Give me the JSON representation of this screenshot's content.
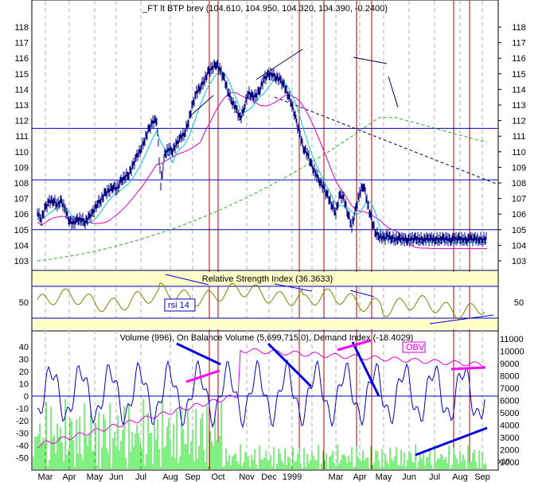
{
  "colors": {
    "price": "#000080",
    "ma_fast": "#00c8e0",
    "ma_slow": "#e000c0",
    "ma_long": "#20b020",
    "hline": "#0000c0",
    "vline": "#b00000",
    "rsi_band": "#ffffc8",
    "rsi_line": "#808000",
    "volume": "#00e000",
    "demand": "#0000d0",
    "obv": "#e000e0",
    "trend": "#0000e0",
    "trend_obv": "#ff00ff"
  },
  "chart_data": [
    {
      "type": "line",
      "title": "_FT lt BTP brev (104.610, 104.950, 104.320, 104.390, -0.2400)",
      "ylim": [
        102.3,
        118.8
      ],
      "yticks": [
        "103",
        "104",
        "105",
        "106",
        "107",
        "108",
        "109",
        "110",
        "111",
        "112",
        "113",
        "114",
        "115",
        "116",
        "117",
        "118"
      ],
      "hlines": [
        111.5,
        108.2,
        105.0
      ],
      "series": [
        {
          "key": "price",
          "x": [
            0,
            5,
            10,
            15,
            20,
            25,
            30,
            35,
            40,
            45,
            50,
            55,
            60,
            65,
            70,
            75,
            80,
            85,
            90,
            95,
            100,
            105,
            110,
            115,
            120,
            125,
            130,
            135,
            140,
            145,
            150,
            155,
            160,
            165,
            170,
            175,
            180,
            185,
            190,
            195,
            200,
            205,
            210,
            215,
            220,
            225,
            230,
            235,
            240,
            245,
            250,
            255,
            260,
            265,
            270,
            275,
            280,
            285,
            290,
            295,
            300,
            305,
            310,
            315,
            320,
            325,
            330,
            335,
            340,
            345,
            350,
            355,
            360,
            365,
            370,
            375,
            380,
            385,
            390,
            395,
            400,
            405,
            410,
            415,
            420,
            425,
            430,
            435,
            440,
            445,
            450,
            455,
            460,
            465,
            470,
            475,
            480,
            485,
            490,
            495,
            500,
            505,
            510,
            515,
            520,
            525,
            530,
            535,
            540,
            545,
            550,
            555,
            560,
            565
          ],
          "values": [
            106.1,
            105.7,
            106.4,
            106.8,
            106.9,
            106.6,
            106.8,
            106.3,
            105.6,
            105.4,
            105.6,
            105.7,
            105.5,
            105.8,
            106.1,
            106.7,
            106.9,
            107.3,
            107.5,
            107.8,
            107.6,
            108.1,
            108.4,
            108.6,
            109.1,
            109.7,
            110.2,
            110.8,
            111.4,
            111.9,
            112.1,
            107.9,
            109.8,
            110.2,
            110.1,
            110.5,
            110.9,
            111.2,
            112.0,
            113.0,
            113.8,
            114.2,
            114.6,
            115.1,
            115.4,
            115.7,
            115.2,
            114.6,
            113.8,
            113.2,
            112.7,
            112.1,
            112.9,
            113.8,
            113.5,
            113.6,
            114.1,
            114.7,
            114.9,
            115.0,
            114.8,
            114.6,
            114.2,
            113.7,
            113.0,
            112.0,
            111.0,
            110.2,
            109.8,
            109.0,
            108.6,
            108.1,
            107.6,
            107.1,
            106.6,
            106.1,
            107.2,
            107.0,
            106.1,
            105.2,
            106.3,
            107.4,
            107.9,
            106.6,
            105.6,
            104.8,
            104.6,
            104.4,
            104.6,
            104.5,
            104.4,
            104.4,
            104.4,
            104.4,
            104.4,
            104.4,
            104.4,
            104.4,
            104.4,
            104.4,
            104.4,
            104.4,
            104.4,
            104.4,
            104.4,
            104.4,
            104.4,
            104.4,
            104.4,
            104.4,
            104.4,
            104.4,
            104.4,
            104.4
          ]
        }
      ]
    },
    {
      "type": "line",
      "title": "Relative Strength Index (36.3633)",
      "label": "rsi 14",
      "ylim": [
        0,
        100
      ],
      "yticks": [
        "50"
      ],
      "band": [
        30,
        70
      ]
    },
    {
      "type": "line",
      "title": "Volume (996), On Balance Volume (5,699,715.0), Demand Index (-18.4029)",
      "label": "OBV",
      "multiplier": "x10",
      "yticks_left": [
        "40",
        "30",
        "20",
        "10",
        "0",
        "-10",
        "-20",
        "-30",
        "-40",
        "-50"
      ],
      "yticks_right": [
        "11000",
        "10000",
        "9000",
        "8000",
        "7000",
        "6000",
        "5000",
        "4000",
        "3000",
        "2000",
        "1000"
      ],
      "xlabels": [
        "Mar",
        "Apr",
        "May",
        "Jun",
        "Jul",
        "Aug",
        "Sep",
        "Oct",
        "Nov",
        "Dec",
        "1999",
        "Mar",
        "Apr",
        "May",
        "Jun",
        "Jul",
        "Aug",
        "Sep"
      ]
    }
  ]
}
